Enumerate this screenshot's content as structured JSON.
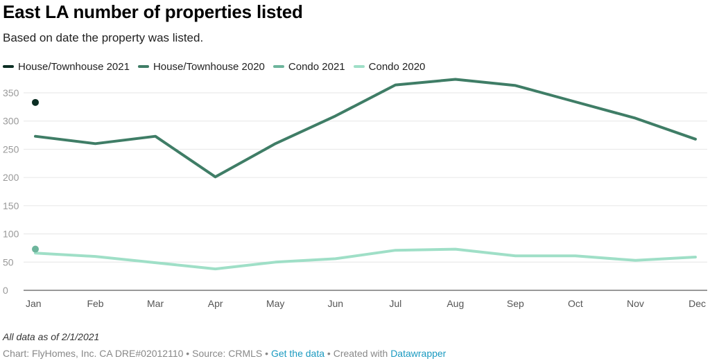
{
  "title": "East LA number of properties listed",
  "subtitle": "Based on date the property was listed.",
  "note": "All data as of 2/1/2021",
  "footer": {
    "chart_credit": "Chart: FlyHomes, Inc. CA DRE#02012110",
    "sep1": " • ",
    "source": "Source: CRMLS",
    "sep2": " • ",
    "get_data_label": "Get the data",
    "sep3": " • ",
    "created_with": "Created with ",
    "datawrapper_label": "Datawrapper"
  },
  "colors": {
    "house2021": "#0b2e23",
    "house2020": "#3f7d66",
    "condo2021": "#6db59c",
    "condo2020": "#9fdfc7",
    "grid": "#e6e6e6",
    "axis": "#333333",
    "link": "#1a9ac0"
  },
  "chart_data": {
    "type": "line",
    "title": "East LA number of properties listed",
    "subtitle": "Based on date the property was listed.",
    "categories": [
      "Jan",
      "Feb",
      "Mar",
      "Apr",
      "May",
      "Jun",
      "Jul",
      "Aug",
      "Sep",
      "Oct",
      "Nov",
      "Dec"
    ],
    "ylim": [
      0,
      375
    ],
    "yticks": [
      0,
      50,
      100,
      150,
      200,
      250,
      300,
      350
    ],
    "grid": true,
    "legend_position": "top-left",
    "series": [
      {
        "name": "House/Townhouse 2021",
        "key": "house2021",
        "values": [
          333,
          null,
          null,
          null,
          null,
          null,
          null,
          null,
          null,
          null,
          null,
          null
        ]
      },
      {
        "name": "House/Townhouse 2020",
        "key": "house2020",
        "values": [
          273,
          260,
          273,
          201,
          260,
          309,
          364,
          374,
          363,
          334,
          305,
          268
        ]
      },
      {
        "name": "Condo 2021",
        "key": "condo2021",
        "values": [
          73,
          null,
          null,
          null,
          null,
          null,
          null,
          null,
          null,
          null,
          null,
          null
        ]
      },
      {
        "name": "Condo 2020",
        "key": "condo2020",
        "values": [
          66,
          60,
          49,
          38,
          50,
          56,
          71,
          73,
          61,
          61,
          53,
          59
        ]
      }
    ]
  }
}
